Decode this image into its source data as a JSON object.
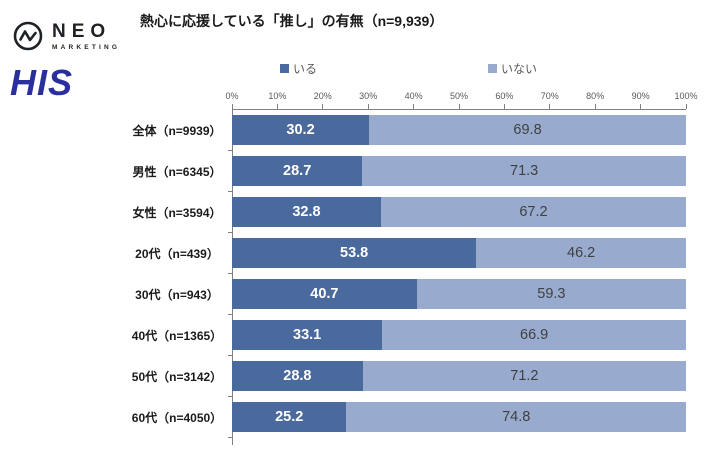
{
  "header": {
    "neo_logo": {
      "line1": "NEO",
      "line2": "MARKETING",
      "icon": "pulse-circle-icon",
      "color": "#1e2125"
    },
    "his_logo": {
      "text": "HIS",
      "color": "#2b2f9e"
    }
  },
  "title": "熱心に応援している「推し」の有無（n=9,939）",
  "chart_data": {
    "type": "bar",
    "orientation": "horizontal",
    "stacked": true,
    "title": "熱心に応援している「推し」の有無（n=9,939）",
    "categories": [
      "全体（n=9939）",
      "男性（n=6345）",
      "女性（n=3594）",
      "20代（n=439）",
      "30代（n=943）",
      "40代（n=1365）",
      "50代（n=3142）",
      "60代（n=4050）"
    ],
    "series": [
      {
        "name": "いる",
        "color": "#4a699c",
        "values": [
          30.2,
          28.7,
          32.8,
          53.8,
          40.7,
          33.1,
          28.8,
          25.2
        ]
      },
      {
        "name": "いない",
        "color": "#98abce",
        "values": [
          69.8,
          71.3,
          67.2,
          46.2,
          59.3,
          66.9,
          71.2,
          74.8
        ]
      }
    ],
    "x_ticks": [
      "0%",
      "10%",
      "20%",
      "30%",
      "40%",
      "50%",
      "60%",
      "70%",
      "80%",
      "90%",
      "100%"
    ],
    "xlim": [
      0,
      100
    ],
    "grid": false,
    "legend_position": "top",
    "value_labels": true
  }
}
